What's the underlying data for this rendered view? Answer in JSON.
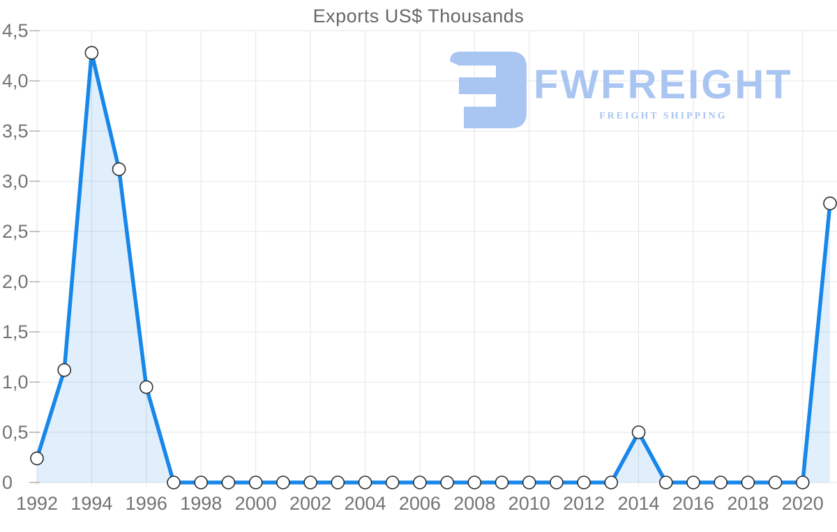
{
  "chart_data": {
    "type": "area",
    "title": "Exports US$ Thousands",
    "x": [
      1992,
      1993,
      1994,
      1995,
      1996,
      1997,
      1998,
      1999,
      2000,
      2001,
      2002,
      2003,
      2004,
      2005,
      2006,
      2007,
      2008,
      2009,
      2010,
      2011,
      2012,
      2013,
      2014,
      2015,
      2016,
      2017,
      2018,
      2019,
      2020,
      2021
    ],
    "values": [
      0.24,
      1.12,
      4.28,
      3.12,
      0.95,
      0,
      0,
      0,
      0,
      0,
      0,
      0,
      0,
      0,
      0,
      0,
      0,
      0,
      0,
      0,
      0,
      0,
      0.5,
      0,
      0,
      0,
      0,
      0,
      0,
      2.78
    ],
    "ylim": [
      0,
      4.5
    ],
    "y_ticks": [
      {
        "value": 0,
        "label": "0"
      },
      {
        "value": 0.5,
        "label": "0,5"
      },
      {
        "value": 1,
        "label": "1,0"
      },
      {
        "value": 1.5,
        "label": "1,5"
      },
      {
        "value": 2,
        "label": "2,0"
      },
      {
        "value": 2.5,
        "label": "2,5"
      },
      {
        "value": 3,
        "label": "3,0"
      },
      {
        "value": 3.5,
        "label": "3,5"
      },
      {
        "value": 4,
        "label": "4,0"
      },
      {
        "value": 4.5,
        "label": "4,5"
      }
    ],
    "x_ticks": [
      {
        "value": 1992,
        "label": "1992"
      },
      {
        "value": 1994,
        "label": "1994"
      },
      {
        "value": 1996,
        "label": "1996"
      },
      {
        "value": 1998,
        "label": "1998"
      },
      {
        "value": 2000,
        "label": "2000"
      },
      {
        "value": 2002,
        "label": "2002"
      },
      {
        "value": 2004,
        "label": "2004"
      },
      {
        "value": 2006,
        "label": "2006"
      },
      {
        "value": 2008,
        "label": "2008"
      },
      {
        "value": 2010,
        "label": "2010"
      },
      {
        "value": 2012,
        "label": "2012"
      },
      {
        "value": 2014,
        "label": "2014"
      },
      {
        "value": 2016,
        "label": "2016"
      },
      {
        "value": 2018,
        "label": "2018"
      },
      {
        "value": 2020,
        "label": "2020"
      }
    ],
    "grid": true,
    "legend": "none"
  },
  "logo": {
    "brand": "FWFREIGHT",
    "tagline": "FREIGHT SHIPPING"
  },
  "colors": {
    "line": "#1787ea",
    "area_fill": "#1787ea",
    "area_opacity": "0.13",
    "marker_fill": "#ffffff",
    "marker_stroke": "#2d2d2d",
    "grid": "#e4e4e4",
    "axis_tick": "#aaaaaa",
    "tick_label": "#737373",
    "title": "#666666",
    "logo_blue": "#a9c5f1"
  }
}
